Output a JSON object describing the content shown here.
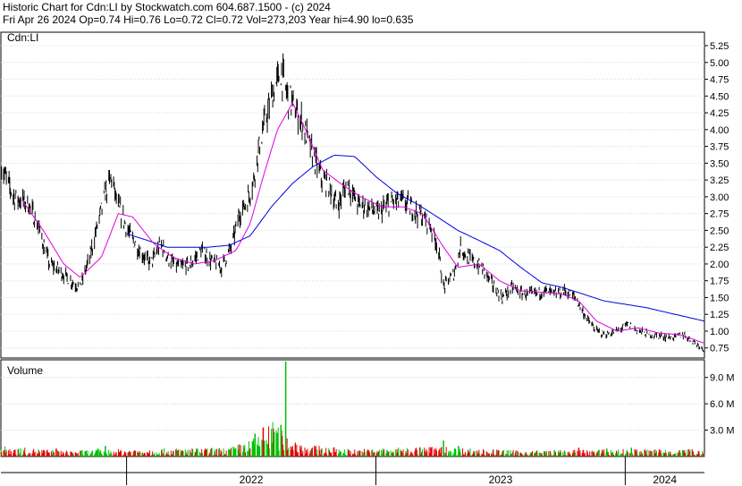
{
  "header": {
    "line1": "Historic Chart for Cdn:LI by Stockwatch.com 604.687.1500 - (c) 2024",
    "line2": "Fri Apr 26 2024  Op=0.74  Hi=0.76  Lo=0.72  Cl=0.72  Vol=273,203  Year hi=4.90  lo=0.635"
  },
  "chart_data": [
    {
      "type": "bar",
      "subtype": "ohlc",
      "symbol_label": "Cdn:LI",
      "y_ticks": [
        "5.25",
        "5.00",
        "4.75",
        "4.50",
        "4.25",
        "4.00",
        "3.75",
        "3.50",
        "3.25",
        "3.00",
        "2.75",
        "2.50",
        "2.25",
        "2.00",
        "1.75",
        "1.50",
        "1.25",
        "1.00",
        "0.75"
      ],
      "ylim": [
        0.6,
        5.45
      ],
      "x_ticks": [
        "2022",
        "2023",
        "2024"
      ],
      "x_range": [
        "2021-07-01",
        "2024-04-26"
      ],
      "x_tick_boundaries": [
        "2022-01-01",
        "2023-01-01",
        "2024-01-01"
      ],
      "colors": {
        "price": "#000000",
        "ma_short": "#e000e0",
        "ma_long": "#0000e0"
      },
      "price_anchors": [
        [
          "2021-07-01",
          3.45
        ],
        [
          "2021-07-20",
          3.0
        ],
        [
          "2021-08-10",
          2.9
        ],
        [
          "2021-08-25",
          2.55
        ],
        [
          "2021-09-10",
          2.0
        ],
        [
          "2021-09-25",
          1.9
        ],
        [
          "2021-10-10",
          1.75
        ],
        [
          "2021-10-25",
          1.65
        ],
        [
          "2021-11-08",
          2.1
        ],
        [
          "2021-11-20",
          2.6
        ],
        [
          "2021-12-01",
          3.05
        ],
        [
          "2021-12-10",
          3.3
        ],
        [
          "2021-12-18",
          2.9
        ],
        [
          "2022-01-05",
          2.45
        ],
        [
          "2022-01-20",
          2.2
        ],
        [
          "2022-02-05",
          2.0
        ],
        [
          "2022-02-20",
          2.3
        ],
        [
          "2022-03-05",
          2.05
        ],
        [
          "2022-03-20",
          1.95
        ],
        [
          "2022-04-05",
          2.0
        ],
        [
          "2022-04-20",
          2.2
        ],
        [
          "2022-05-05",
          2.05
        ],
        [
          "2022-05-20",
          1.95
        ],
        [
          "2022-06-05",
          2.3
        ],
        [
          "2022-06-15",
          2.75
        ],
        [
          "2022-06-25",
          2.9
        ],
        [
          "2022-07-05",
          3.2
        ],
        [
          "2022-07-15",
          3.8
        ],
        [
          "2022-07-25",
          4.2
        ],
        [
          "2022-08-05",
          4.6
        ],
        [
          "2022-08-15",
          4.85
        ],
        [
          "2022-08-25",
          4.5
        ],
        [
          "2022-09-05",
          4.3
        ],
        [
          "2022-09-15",
          4.1
        ],
        [
          "2022-09-25",
          3.8
        ],
        [
          "2022-10-05",
          3.5
        ],
        [
          "2022-10-15",
          3.25
        ],
        [
          "2022-10-25",
          3.15
        ],
        [
          "2022-11-05",
          2.85
        ],
        [
          "2022-11-20",
          3.2
        ],
        [
          "2022-12-05",
          2.9
        ],
        [
          "2022-12-20",
          2.85
        ],
        [
          "2023-01-05",
          2.75
        ],
        [
          "2023-01-20",
          2.9
        ],
        [
          "2023-02-05",
          2.95
        ],
        [
          "2023-02-20",
          2.85
        ],
        [
          "2023-03-05",
          2.75
        ],
        [
          "2023-03-20",
          2.6
        ],
        [
          "2023-04-01",
          2.3
        ],
        [
          "2023-04-10",
          1.65
        ],
        [
          "2023-04-25",
          1.85
        ],
        [
          "2023-05-05",
          2.25
        ],
        [
          "2023-05-20",
          2.05
        ],
        [
          "2023-06-05",
          1.95
        ],
        [
          "2023-06-20",
          1.7
        ],
        [
          "2023-07-05",
          1.5
        ],
        [
          "2023-07-20",
          1.65
        ],
        [
          "2023-08-05",
          1.55
        ],
        [
          "2023-08-20",
          1.55
        ],
        [
          "2023-09-05",
          1.6
        ],
        [
          "2023-09-20",
          1.55
        ],
        [
          "2023-10-05",
          1.6
        ],
        [
          "2023-10-20",
          1.5
        ],
        [
          "2023-11-05",
          1.2
        ],
        [
          "2023-11-20",
          1.0
        ],
        [
          "2023-12-05",
          0.95
        ],
        [
          "2023-12-20",
          1.0
        ],
        [
          "2024-01-05",
          1.1
        ],
        [
          "2024-01-20",
          1.0
        ],
        [
          "2024-02-05",
          0.95
        ],
        [
          "2024-02-20",
          0.93
        ],
        [
          "2024-03-10",
          0.9
        ],
        [
          "2024-03-25",
          0.95
        ],
        [
          "2024-04-10",
          0.85
        ],
        [
          "2024-04-26",
          0.72
        ]
      ],
      "ma_short_anchors": [
        [
          "2021-08-01",
          2.95
        ],
        [
          "2021-09-01",
          2.5
        ],
        [
          "2021-10-01",
          2.0
        ],
        [
          "2021-10-25",
          1.8
        ],
        [
          "2021-11-25",
          2.1
        ],
        [
          "2021-12-20",
          2.75
        ],
        [
          "2022-01-10",
          2.7
        ],
        [
          "2022-02-10",
          2.3
        ],
        [
          "2022-03-10",
          2.1
        ],
        [
          "2022-04-10",
          2.0
        ],
        [
          "2022-05-10",
          2.05
        ],
        [
          "2022-06-10",
          2.2
        ],
        [
          "2022-07-01",
          2.6
        ],
        [
          "2022-07-20",
          3.3
        ],
        [
          "2022-08-10",
          4.0
        ],
        [
          "2022-09-01",
          4.4
        ],
        [
          "2022-09-20",
          4.0
        ],
        [
          "2022-10-15",
          3.4
        ],
        [
          "2022-11-10",
          3.2
        ],
        [
          "2022-12-10",
          3.0
        ],
        [
          "2023-01-10",
          2.85
        ],
        [
          "2023-02-10",
          2.85
        ],
        [
          "2023-03-10",
          2.75
        ],
        [
          "2023-04-10",
          2.25
        ],
        [
          "2023-05-01",
          1.95
        ],
        [
          "2023-06-01",
          2.0
        ],
        [
          "2023-07-01",
          1.75
        ],
        [
          "2023-08-01",
          1.6
        ],
        [
          "2023-09-01",
          1.58
        ],
        [
          "2023-10-01",
          1.55
        ],
        [
          "2023-10-25",
          1.45
        ],
        [
          "2023-11-20",
          1.15
        ],
        [
          "2023-12-20",
          1.0
        ],
        [
          "2024-01-20",
          1.05
        ],
        [
          "2024-02-20",
          0.97
        ],
        [
          "2024-03-20",
          0.95
        ],
        [
          "2024-04-26",
          0.82
        ]
      ],
      "ma_long_anchors": [
        [
          "2022-01-01",
          2.45
        ],
        [
          "2022-02-01",
          2.35
        ],
        [
          "2022-03-01",
          2.25
        ],
        [
          "2022-04-01",
          2.25
        ],
        [
          "2022-05-01",
          2.25
        ],
        [
          "2022-06-01",
          2.28
        ],
        [
          "2022-07-01",
          2.42
        ],
        [
          "2022-08-01",
          2.85
        ],
        [
          "2022-09-01",
          3.2
        ],
        [
          "2022-10-01",
          3.45
        ],
        [
          "2022-11-01",
          3.62
        ],
        [
          "2022-12-01",
          3.6
        ],
        [
          "2023-01-01",
          3.3
        ],
        [
          "2023-02-01",
          3.05
        ],
        [
          "2023-03-01",
          2.9
        ],
        [
          "2023-04-01",
          2.7
        ],
        [
          "2023-05-01",
          2.5
        ],
        [
          "2023-06-01",
          2.35
        ],
        [
          "2023-07-01",
          2.2
        ],
        [
          "2023-08-01",
          1.95
        ],
        [
          "2023-09-01",
          1.72
        ],
        [
          "2023-10-01",
          1.65
        ],
        [
          "2023-11-01",
          1.55
        ],
        [
          "2023-12-01",
          1.45
        ],
        [
          "2024-01-01",
          1.4
        ],
        [
          "2024-02-01",
          1.35
        ],
        [
          "2024-03-01",
          1.28
        ],
        [
          "2024-04-26",
          1.15
        ]
      ]
    },
    {
      "type": "bar",
      "subtype": "volume",
      "title": "Volume",
      "y_ticks": [
        "9.0 M",
        "6.0 M",
        "3.0 M"
      ],
      "y_tick_values_m": [
        9.0,
        6.0,
        3.0
      ],
      "ylim_m": [
        0,
        10.8
      ],
      "colors": {
        "up": "#00c000",
        "down": "#e00000"
      },
      "volume_anchors_m": [
        [
          "2021-07-01",
          0.7
        ],
        [
          "2021-10-01",
          0.4
        ],
        [
          "2022-01-01",
          0.5
        ],
        [
          "2022-06-01",
          0.6
        ],
        [
          "2022-07-15",
          1.4
        ],
        [
          "2022-08-05",
          2.5
        ],
        [
          "2022-08-20",
          1.5
        ],
        [
          "2022-09-20",
          0.8
        ],
        [
          "2022-12-01",
          0.5
        ],
        [
          "2023-04-01",
          0.7
        ],
        [
          "2023-05-01",
          0.6
        ],
        [
          "2023-08-01",
          0.4
        ],
        [
          "2024-01-01",
          0.5
        ],
        [
          "2024-04-26",
          0.5
        ]
      ],
      "volume_spikes_m": [
        [
          "2022-08-22",
          10.8
        ],
        [
          "2022-08-15",
          3.6
        ],
        [
          "2022-07-20",
          3.3
        ],
        [
          "2022-07-08",
          2.6
        ],
        [
          "2022-08-05",
          2.8
        ],
        [
          "2022-09-05",
          1.4
        ],
        [
          "2021-12-01",
          1.2
        ],
        [
          "2021-11-20",
          0.9
        ],
        [
          "2021-09-20",
          0.9
        ],
        [
          "2023-04-10",
          1.8
        ],
        [
          "2023-05-02",
          1.2
        ],
        [
          "2023-10-25",
          1.0
        ],
        [
          "2023-12-05",
          0.9
        ],
        [
          "2024-01-10",
          1.0
        ],
        [
          "2024-02-20",
          0.8
        ]
      ]
    }
  ]
}
